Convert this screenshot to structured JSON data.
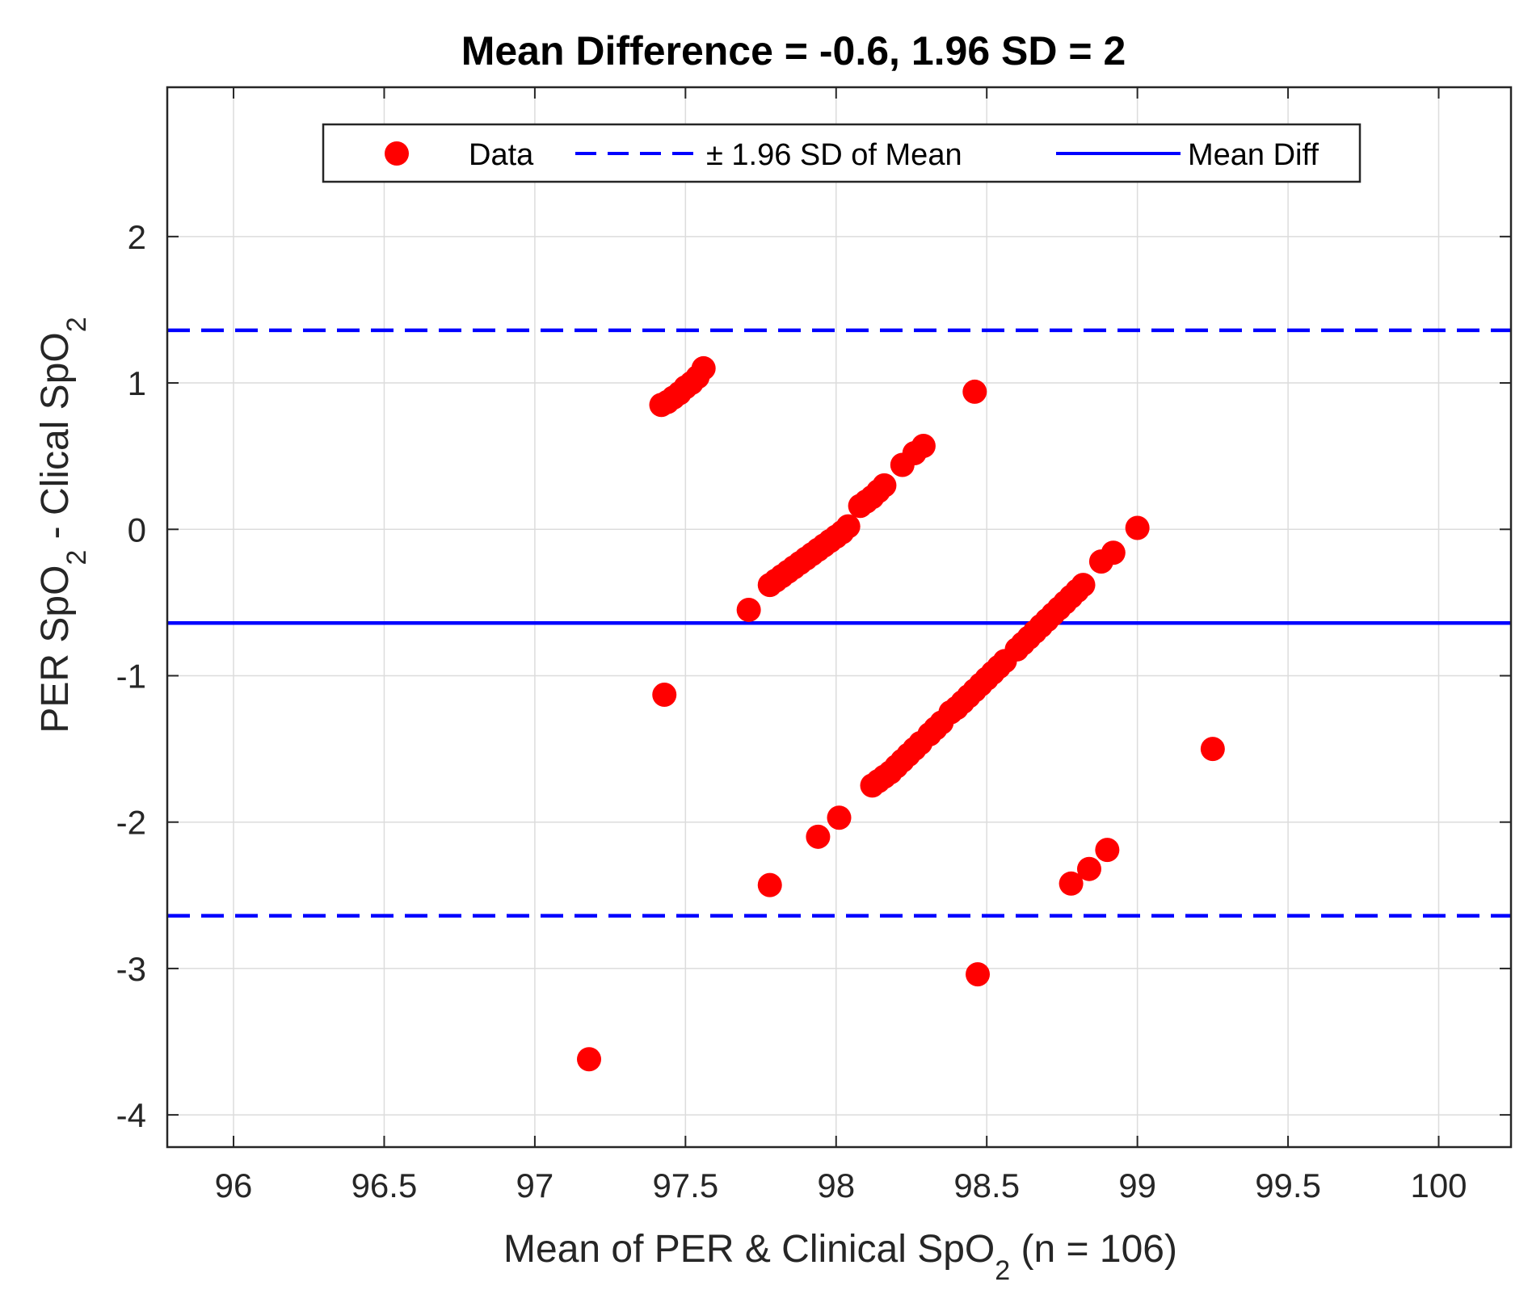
{
  "chart_data": {
    "type": "scatter",
    "title": "Mean Difference = -0.6, 1.96 SD = 2",
    "xlabel": {
      "pre": "Mean of PER & Clinical SpO",
      "sub": "2",
      "post": " (n = 106)"
    },
    "ylabel": {
      "pre1": "PER SpO",
      "sub1": "2",
      "mid": " - Clical SpO",
      "sub2": "2"
    },
    "xlim": [
      95.78,
      100.24
    ],
    "ylim": [
      -4.22,
      3.02
    ],
    "xticks": [
      96,
      96.5,
      97,
      97.5,
      98,
      98.5,
      99,
      99.5,
      100
    ],
    "xtick_labels": [
      "96",
      "96.5",
      "97",
      "97.5",
      "98",
      "98.5",
      "99",
      "99.5",
      "100"
    ],
    "yticks": [
      -4,
      -3,
      -2,
      -1,
      0,
      1,
      2
    ],
    "ytick_labels": [
      "-4",
      "-3",
      "-2",
      "-1",
      "0",
      "1",
      "2"
    ],
    "grid": true,
    "mean_diff": -0.64,
    "upper_limit": 1.36,
    "lower_limit": -2.64,
    "colors": {
      "data": "#ff0000",
      "lines": "#0000ff",
      "axis": "#262626",
      "grid": "#dcdcdc"
    },
    "legend": {
      "position": "top",
      "entries": [
        {
          "label": "Data",
          "style": "marker"
        },
        {
          "label": "± 1.96 SD of Mean",
          "style": "dashed"
        },
        {
          "label": "Mean Diff",
          "style": "solid"
        }
      ]
    },
    "series": [
      {
        "name": "Data",
        "points": [
          [
            97.42,
            0.85
          ],
          [
            97.44,
            0.87
          ],
          [
            97.46,
            0.9
          ],
          [
            97.48,
            0.93
          ],
          [
            97.5,
            0.97
          ],
          [
            97.52,
            1.0
          ],
          [
            97.54,
            1.04
          ],
          [
            97.56,
            1.1
          ],
          [
            98.46,
            0.94
          ],
          [
            97.71,
            -0.55
          ],
          [
            97.78,
            -0.38
          ],
          [
            97.8,
            -0.35
          ],
          [
            97.82,
            -0.32
          ],
          [
            97.84,
            -0.29
          ],
          [
            97.86,
            -0.26
          ],
          [
            97.88,
            -0.23
          ],
          [
            97.9,
            -0.2
          ],
          [
            97.92,
            -0.17
          ],
          [
            97.94,
            -0.14
          ],
          [
            97.96,
            -0.11
          ],
          [
            97.98,
            -0.08
          ],
          [
            98.0,
            -0.05
          ],
          [
            98.02,
            -0.02
          ],
          [
            98.04,
            0.02
          ],
          [
            98.08,
            0.16
          ],
          [
            98.1,
            0.19
          ],
          [
            98.12,
            0.22
          ],
          [
            98.14,
            0.26
          ],
          [
            98.16,
            0.3
          ],
          [
            98.22,
            0.44
          ],
          [
            98.26,
            0.52
          ],
          [
            98.29,
            0.57
          ],
          [
            97.43,
            -1.13
          ],
          [
            99.25,
            -1.5
          ],
          [
            97.18,
            -3.62
          ],
          [
            98.47,
            -3.04
          ],
          [
            97.78,
            -2.43
          ],
          [
            97.94,
            -2.1
          ],
          [
            98.01,
            -1.97
          ],
          [
            98.12,
            -1.75
          ],
          [
            98.14,
            -1.72
          ],
          [
            98.16,
            -1.69
          ],
          [
            98.18,
            -1.66
          ],
          [
            98.2,
            -1.62
          ],
          [
            98.22,
            -1.58
          ],
          [
            98.24,
            -1.54
          ],
          [
            98.26,
            -1.5
          ],
          [
            98.28,
            -1.46
          ],
          [
            98.31,
            -1.4
          ],
          [
            98.33,
            -1.36
          ],
          [
            98.35,
            -1.32
          ],
          [
            98.38,
            -1.25
          ],
          [
            98.4,
            -1.22
          ],
          [
            98.42,
            -1.18
          ],
          [
            98.44,
            -1.14
          ],
          [
            98.46,
            -1.1
          ],
          [
            98.48,
            -1.06
          ],
          [
            98.5,
            -1.02
          ],
          [
            98.52,
            -0.98
          ],
          [
            98.54,
            -0.94
          ],
          [
            98.56,
            -0.9
          ],
          [
            98.6,
            -0.82
          ],
          [
            98.62,
            -0.78
          ],
          [
            98.64,
            -0.74
          ],
          [
            98.66,
            -0.7
          ],
          [
            98.68,
            -0.66
          ],
          [
            98.7,
            -0.62
          ],
          [
            98.72,
            -0.58
          ],
          [
            98.74,
            -0.54
          ],
          [
            98.76,
            -0.5
          ],
          [
            98.78,
            -0.46
          ],
          [
            98.8,
            -0.42
          ],
          [
            98.82,
            -0.38
          ],
          [
            98.88,
            -0.22
          ],
          [
            98.92,
            -0.16
          ],
          [
            99.0,
            0.01
          ],
          [
            98.78,
            -2.42
          ],
          [
            98.84,
            -2.32
          ],
          [
            98.9,
            -2.19
          ]
        ]
      }
    ]
  }
}
